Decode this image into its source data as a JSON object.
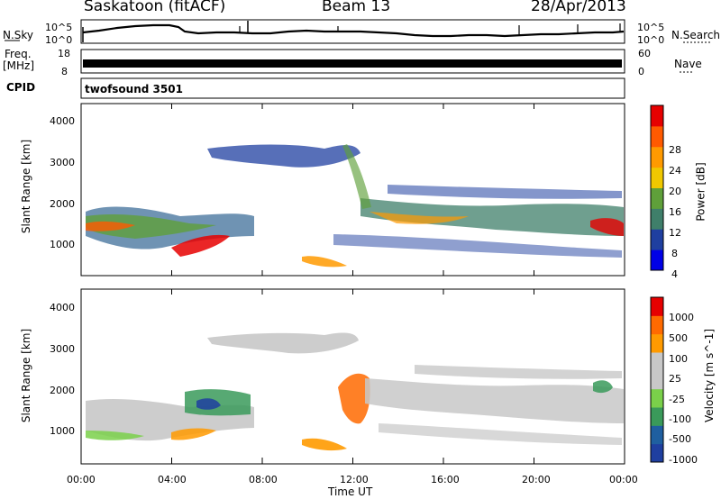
{
  "header": {
    "station": "Saskatoon (fitACF)",
    "beam": "Beam 13",
    "date": "28/Apr/2013"
  },
  "strips": {
    "nsky_label": "N.Sky",
    "nsearch_label": "N.Search",
    "noise_ticks": [
      "10^5",
      "10^0"
    ],
    "freq_label_line1": "Freq.",
    "freq_label_line2": "[MHz]",
    "freq_ticks": [
      "18",
      "8"
    ],
    "nave_label": "Nave",
    "nave_ticks": [
      "60",
      "0"
    ],
    "cpid_label": "CPID",
    "cpid_value": "twofsound 3501"
  },
  "axes": {
    "ylabel": "Slant Range [km]",
    "yticks": [
      "4000",
      "3000",
      "2000",
      "1000"
    ],
    "xlabel": "Time UT",
    "xticks": [
      "00:00",
      "04:00",
      "08:00",
      "12:00",
      "16:00",
      "20:00",
      "00:00"
    ]
  },
  "colors": {
    "power_scale": [
      "#0000e6",
      "#1f3fa0",
      "#3f7f6a",
      "#5fa03a",
      "#f0c800",
      "#ff9a00",
      "#ff5a00",
      "#e60000"
    ],
    "velocity_scale": [
      "#e60000",
      "#ff6a00",
      "#ff9a00",
      "#c8c8c8",
      "#c8c8c8",
      "#7ad04a",
      "#3a9a5a",
      "#1f5fa0",
      "#1f3fa0"
    ]
  },
  "chart_data": [
    {
      "type": "heatmap",
      "panel": "power",
      "title": "",
      "ylabel": "Slant Range [km]",
      "xlabel": "",
      "x_range_hours": [
        0,
        24
      ],
      "y_range_km": [
        180,
        4500
      ],
      "colorbar_label": "Power [dB]",
      "colorbar_ticks": [
        "28",
        "24",
        "20",
        "16",
        "12",
        "8",
        "4"
      ],
      "colorbar_range": [
        0,
        32
      ]
    },
    {
      "type": "heatmap",
      "panel": "velocity",
      "title": "",
      "ylabel": "Slant Range [km]",
      "xlabel": "Time UT",
      "x_range_hours": [
        0,
        24
      ],
      "y_range_km": [
        180,
        4500
      ],
      "colorbar_label": "Velocity [m s^-1]",
      "colorbar_ticks": [
        "1000",
        "500",
        "100",
        "25",
        "-25",
        "-100",
        "-500",
        "-1000"
      ]
    }
  ]
}
